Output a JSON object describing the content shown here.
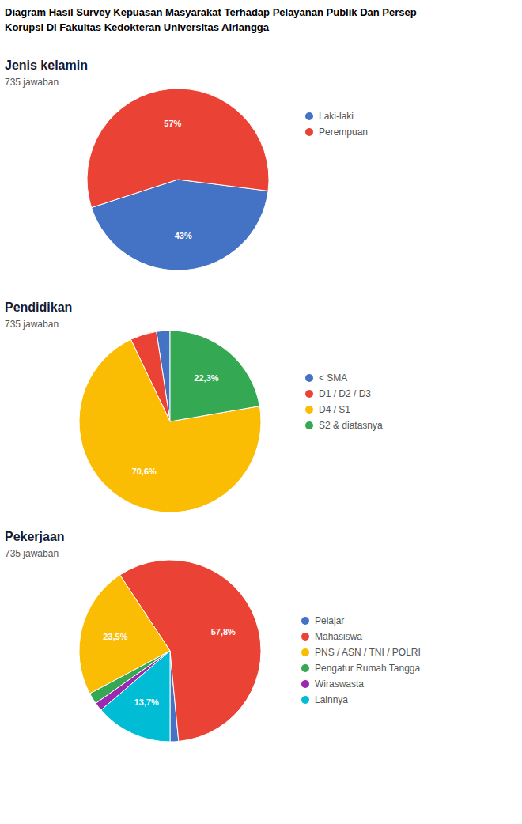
{
  "title": [
    "Diagram Hasil Survey Kepuasan Masyarakat Terhadap Pelayanan Publik Dan Persep",
    "Korupsi Di Fakultas Kedokteran Universitas Airlangga"
  ],
  "chart_data": [
    {
      "type": "pie",
      "title": "Jenis kelamin",
      "subtitle": "735 jawaban",
      "categories": [
        "Laki-laki",
        "Perempuan"
      ],
      "values": [
        43,
        57
      ],
      "value_labels": [
        "43%",
        "57%"
      ],
      "colors": [
        "#4472c4",
        "#ea4335"
      ],
      "data_labels": true,
      "legend": "right"
    },
    {
      "type": "pie",
      "title": "Pendidikan",
      "subtitle": "735 jawaban",
      "categories": [
        "< SMA",
        "D1 / D2 / D3",
        "D4 / S1",
        "S2 & diatasnya"
      ],
      "values": [
        2.4,
        4.7,
        70.6,
        22.3
      ],
      "value_labels": [
        null,
        null,
        "70,6%",
        "22,3%"
      ],
      "colors": [
        "#4472c4",
        "#ea4335",
        "#fbbc04",
        "#34a853"
      ],
      "data_labels": true,
      "legend": "right"
    },
    {
      "type": "pie",
      "title": "Pekerjaan",
      "subtitle": "735 jawaban",
      "categories": [
        "Pelajar",
        "Mahasiswa",
        "PNS / ASN / TNI / POLRI",
        "Pengatur Rumah Tangga",
        "Wiraswasta",
        "Lainnya"
      ],
      "values": [
        1.5,
        57.8,
        23.5,
        2.0,
        1.5,
        13.7
      ],
      "value_labels": [
        null,
        "57,8%",
        "23,5%",
        null,
        null,
        "13,7%"
      ],
      "colors": [
        "#4472c4",
        "#ea4335",
        "#fbbc04",
        "#34a853",
        "#9c27b0",
        "#00bcd4"
      ],
      "data_labels": true,
      "legend": "right"
    }
  ]
}
